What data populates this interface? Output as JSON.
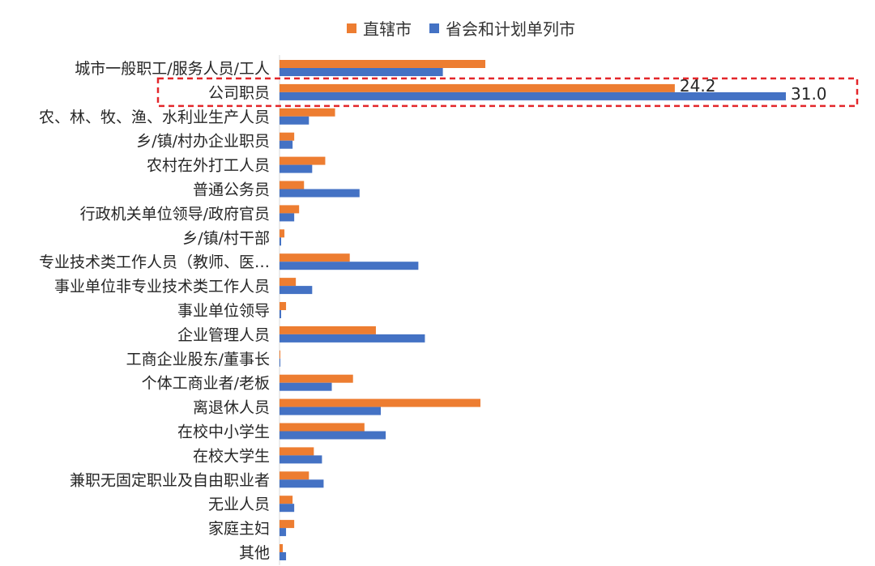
{
  "chart_data": {
    "type": "bar",
    "orientation": "horizontal",
    "series": [
      {
        "name": "直辖市",
        "color": "#ED7D31",
        "values": [
          12.6,
          24.2,
          3.4,
          0.9,
          2.8,
          1.5,
          1.2,
          0.3,
          4.3,
          1.0,
          0.4,
          5.9,
          0.05,
          4.5,
          12.3,
          5.2,
          2.1,
          1.8,
          0.8,
          0.9,
          0.2
        ]
      },
      {
        "name": "省会和计划单列市",
        "color": "#4472C4",
        "values": [
          10.0,
          31.0,
          1.8,
          0.8,
          2.0,
          4.9,
          0.9,
          0.1,
          8.5,
          2.0,
          0.1,
          8.9,
          0.05,
          3.2,
          6.2,
          6.5,
          2.6,
          2.7,
          0.9,
          0.4,
          0.4
        ]
      }
    ],
    "categories": [
      "城市一般职工/服务人员/工人",
      "公司职员",
      "农、林、牧、渔、水利业生产人员",
      "乡/镇/村办企业职员",
      "农村在外打工人员",
      "普通公务员",
      "行政机关单位领导/政府官员",
      "乡/镇/村干部",
      "专业技术类工作人员（教师、医…",
      "事业单位非专业技术类工作人员",
      "事业单位领导",
      "企业管理人员",
      "工商企业股东/董事长",
      "个体工商业者/老板",
      "离退休人员",
      "在校中小学生",
      "在校大学生",
      "兼职无固定职业及自由职业者",
      "无业人员",
      "家庭主妇",
      "其他"
    ],
    "data_labels": [
      {
        "category_index": 1,
        "series_index": 0,
        "text": "24.2"
      },
      {
        "category_index": 1,
        "series_index": 1,
        "text": "31.0"
      }
    ],
    "highlight": {
      "category_index": 1,
      "style": "dashed-red-box"
    },
    "xlim": [
      0,
      31
    ],
    "grid": false,
    "legend": "top-center"
  }
}
